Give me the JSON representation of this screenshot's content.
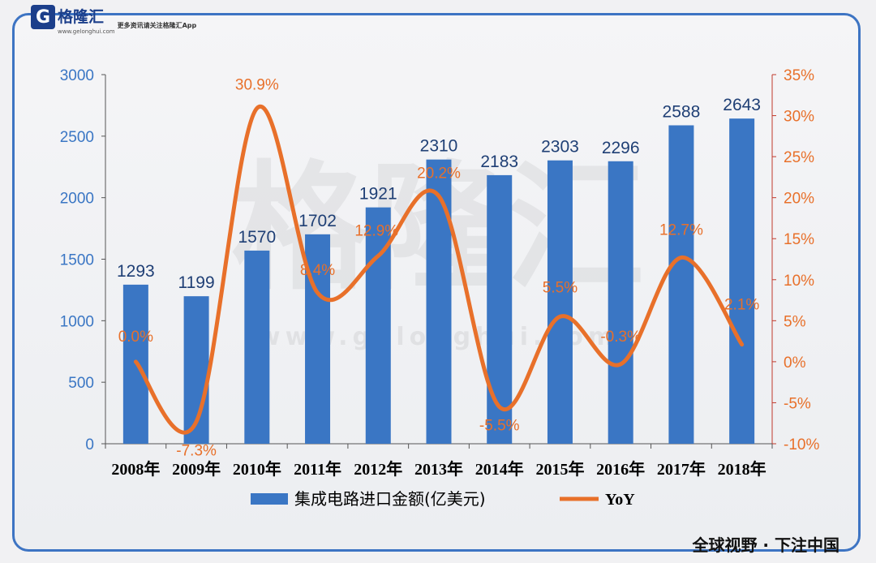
{
  "brand": {
    "logo_letter": "G",
    "name": "格隆汇",
    "url": "www.gelonghui.com",
    "tagline": "更多资讯请关注格隆汇App",
    "watermark_cn": "格隆汇",
    "watermark_url": "www.gelonghui.com"
  },
  "footer": {
    "slogan": "全球视野 · 下注中国"
  },
  "colors": {
    "bar": "#3a76c4",
    "line": "#e8702a",
    "left_axis_text": "#3a76c4",
    "right_axis_text": "#e8702a",
    "frame": "#3d74c3"
  },
  "chart_data": {
    "type": "bar+line",
    "categories": [
      "2008年",
      "2009年",
      "2010年",
      "2011年",
      "2012年",
      "2013年",
      "2014年",
      "2015年",
      "2016年",
      "2017年",
      "2018年"
    ],
    "series": [
      {
        "name": "集成电路进口金额(亿美元)",
        "type": "bar",
        "axis": "left",
        "values": [
          1293,
          1199,
          1570,
          1702,
          1921,
          2310,
          2183,
          2303,
          2296,
          2588,
          2643
        ],
        "labels": [
          "1293",
          "1199",
          "1570",
          "1702",
          "1921",
          "2310",
          "2183",
          "2303",
          "2296",
          "2588",
          "2643"
        ]
      },
      {
        "name": "YoY",
        "type": "line",
        "axis": "right",
        "values": [
          0.0,
          -7.3,
          30.9,
          8.4,
          12.9,
          20.2,
          -5.5,
          5.5,
          -0.3,
          12.7,
          2.1
        ],
        "labels": [
          "0.0%",
          "-7.3%",
          "30.9%",
          "8.4%",
          "12.9%",
          "20.2%",
          "-5.5%",
          "5.5%",
          "-0.3%",
          "12.7%",
          "2.1%"
        ]
      }
    ],
    "y_left": {
      "range": [
        0,
        3000
      ],
      "ticks": [
        "0",
        "500",
        "1000",
        "1500",
        "2000",
        "2500",
        "3000"
      ]
    },
    "y_right": {
      "range": [
        -10,
        35
      ],
      "ticks": [
        "-10%",
        "-5%",
        "0%",
        "5%",
        "10%",
        "15%",
        "20%",
        "25%",
        "30%",
        "35%"
      ]
    },
    "legend_position": "bottom",
    "grid": false
  }
}
